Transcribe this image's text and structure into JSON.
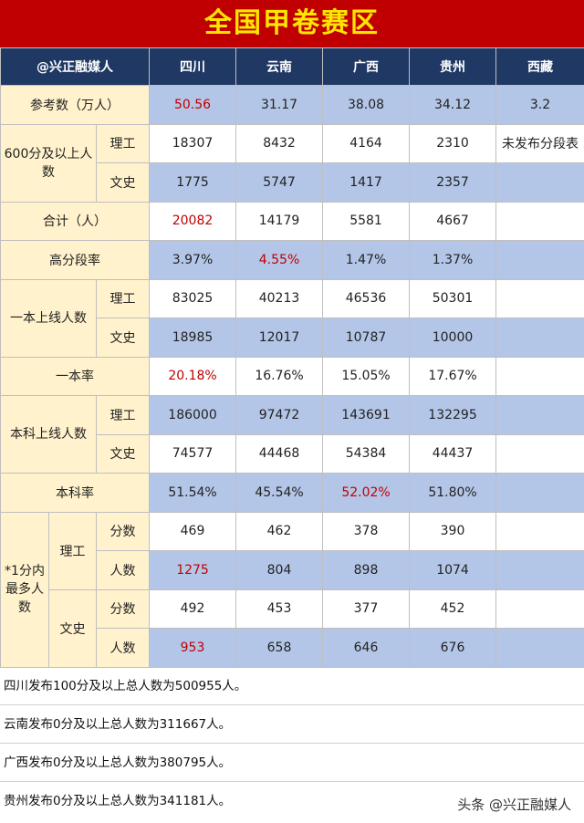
{
  "title": "全国甲卷赛区",
  "header": {
    "corner": "@兴正融媒人",
    "provinces": [
      "四川",
      "云南",
      "广西",
      "贵州",
      "西藏"
    ]
  },
  "labels": {
    "examinees": "参考数（万人）",
    "above600": "600分及以上人数",
    "total": "合计（人）",
    "high_rate": "高分段率",
    "tier1": "一本上线人数",
    "tier1_rate": "一本率",
    "undergrad": "本科上线人数",
    "undergrad_rate": "本科率",
    "most_at_1pt": "*1分内最多人数",
    "science": "理工",
    "arts": "文史",
    "score": "分数",
    "count": "人数"
  },
  "rows": {
    "examinees": [
      "50.56",
      "31.17",
      "38.08",
      "34.12",
      "3.2"
    ],
    "above600_science": [
      "18307",
      "8432",
      "4164",
      "2310",
      "未发布分段表"
    ],
    "above600_arts": [
      "1775",
      "5747",
      "1417",
      "2357",
      ""
    ],
    "total": [
      "20082",
      "14179",
      "5581",
      "4667",
      ""
    ],
    "high_rate": [
      "3.97%",
      "4.55%",
      "1.47%",
      "1.37%",
      ""
    ],
    "tier1_science": [
      "83025",
      "40213",
      "46536",
      "50301",
      ""
    ],
    "tier1_arts": [
      "18985",
      "12017",
      "10787",
      "10000",
      ""
    ],
    "tier1_rate": [
      "20.18%",
      "16.76%",
      "15.05%",
      "17.67%",
      ""
    ],
    "undergrad_science": [
      "186000",
      "97472",
      "143691",
      "132295",
      ""
    ],
    "undergrad_arts": [
      "74577",
      "44468",
      "54384",
      "44437",
      ""
    ],
    "undergrad_rate": [
      "51.54%",
      "45.54%",
      "52.02%",
      "51.80%",
      ""
    ],
    "science_score": [
      "469",
      "462",
      "378",
      "390",
      ""
    ],
    "science_count": [
      "1275",
      "804",
      "898",
      "1074",
      ""
    ],
    "arts_score": [
      "492",
      "453",
      "377",
      "452",
      ""
    ],
    "arts_count": [
      "953",
      "658",
      "646",
      "676",
      ""
    ]
  },
  "highlight_color": "#c00000",
  "notes": [
    "四川发布100分及以上总人数为500955人。",
    "云南发布0分及以上总人数为311667人。",
    "广西发布0分及以上总人数为380795人。",
    "贵州发布0分及以上总人数为341181人。"
  ],
  "watermark": "头条 @兴正融媒人"
}
